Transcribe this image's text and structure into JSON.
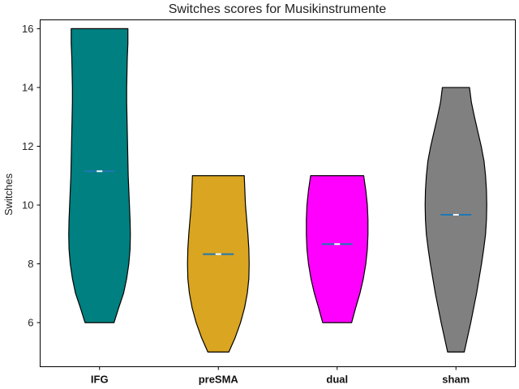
{
  "chart_data": {
    "type": "violin",
    "title": "Switches scores for Musikinstrumente",
    "xlabel": "",
    "ylabel": "Switches",
    "ylim": [
      4.5,
      16.3
    ],
    "yticks": [
      6,
      8,
      10,
      12,
      14,
      16
    ],
    "grid": false,
    "categories": [
      "IFG",
      "preSMA",
      "dual",
      "sham"
    ],
    "series": [
      {
        "category": "IFG",
        "color": "#008080",
        "min": 6,
        "max": 16,
        "mean": 11.15,
        "density": [
          [
            6.0,
            0.47
          ],
          [
            6.5,
            0.62
          ],
          [
            7.0,
            0.78
          ],
          [
            7.5,
            0.88
          ],
          [
            8.0,
            0.95
          ],
          [
            8.5,
            0.99
          ],
          [
            9.0,
            1.0
          ],
          [
            9.5,
            0.99
          ],
          [
            10.0,
            0.97
          ],
          [
            10.5,
            0.95
          ],
          [
            11.0,
            0.93
          ],
          [
            11.5,
            0.92
          ],
          [
            12.0,
            0.91
          ],
          [
            12.5,
            0.9
          ],
          [
            13.0,
            0.89
          ],
          [
            13.5,
            0.88
          ],
          [
            14.0,
            0.88
          ],
          [
            14.5,
            0.89
          ],
          [
            15.0,
            0.9
          ],
          [
            15.5,
            0.92
          ],
          [
            16.0,
            0.92
          ]
        ]
      },
      {
        "category": "preSMA",
        "color": "#DAA520",
        "min": 5,
        "max": 11,
        "mean": 8.33,
        "density": [
          [
            5.0,
            0.34
          ],
          [
            5.5,
            0.55
          ],
          [
            6.0,
            0.72
          ],
          [
            6.5,
            0.85
          ],
          [
            7.0,
            0.94
          ],
          [
            7.5,
            0.99
          ],
          [
            8.0,
            1.0
          ],
          [
            8.5,
            0.99
          ],
          [
            9.0,
            0.96
          ],
          [
            9.5,
            0.92
          ],
          [
            10.0,
            0.88
          ],
          [
            10.5,
            0.86
          ],
          [
            11.0,
            0.84
          ]
        ]
      },
      {
        "category": "dual",
        "color": "#FF00FF",
        "min": 6,
        "max": 11,
        "mean": 8.67,
        "density": [
          [
            6.0,
            0.47
          ],
          [
            6.5,
            0.6
          ],
          [
            7.0,
            0.74
          ],
          [
            7.5,
            0.85
          ],
          [
            8.0,
            0.93
          ],
          [
            8.5,
            0.98
          ],
          [
            9.0,
            1.0
          ],
          [
            9.5,
            1.0
          ],
          [
            10.0,
            0.98
          ],
          [
            10.5,
            0.93
          ],
          [
            11.0,
            0.86
          ]
        ]
      },
      {
        "category": "sham",
        "color": "#808080",
        "min": 5,
        "max": 14,
        "mean": 9.67,
        "density": [
          [
            5.0,
            0.27
          ],
          [
            6.0,
            0.48
          ],
          [
            7.0,
            0.67
          ],
          [
            8.0,
            0.83
          ],
          [
            8.5,
            0.9
          ],
          [
            9.0,
            0.96
          ],
          [
            9.5,
            0.99
          ],
          [
            10.0,
            1.0
          ],
          [
            10.5,
            0.99
          ],
          [
            11.0,
            0.96
          ],
          [
            11.5,
            0.91
          ],
          [
            12.0,
            0.82
          ],
          [
            12.5,
            0.71
          ],
          [
            13.0,
            0.6
          ],
          [
            13.5,
            0.5
          ],
          [
            14.0,
            0.44
          ]
        ]
      }
    ]
  }
}
